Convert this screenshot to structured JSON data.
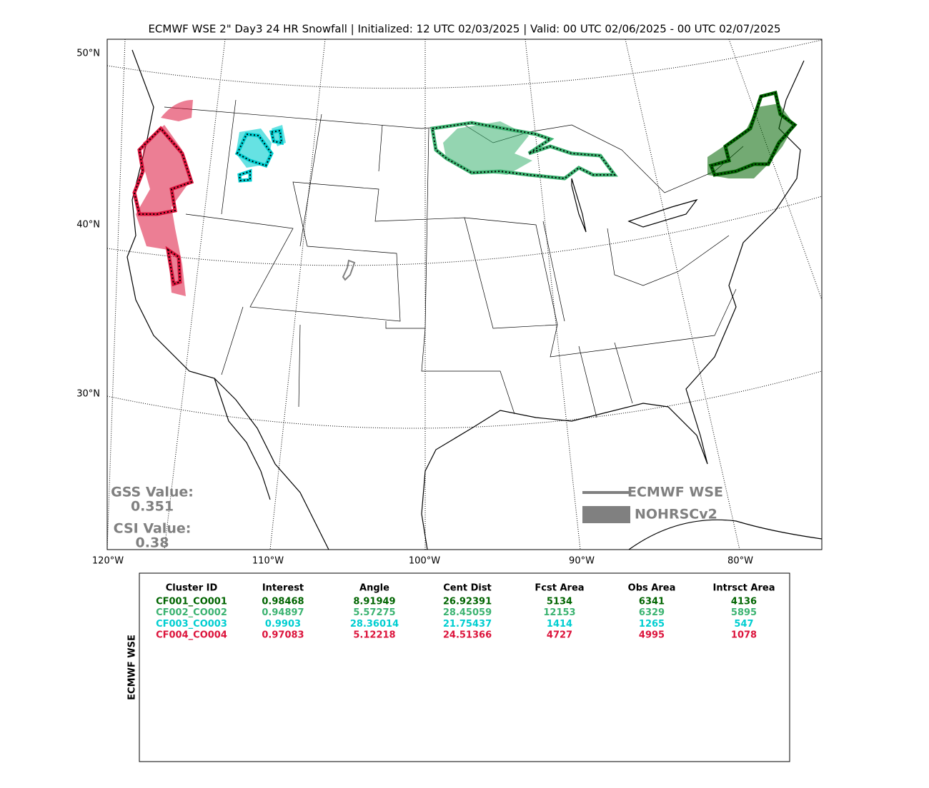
{
  "title": "ECMWF WSE 2\" Day3 24 HR Snowfall | Initialized: 12 UTC 02/03/2025 | Valid: 00 UTC 02/06/2025 - 00 UTC 02/07/2025",
  "map": {
    "lat_labels": [
      "50°N",
      "40°N",
      "30°N"
    ],
    "lon_labels": [
      "120°W",
      "110°W",
      "100°W",
      "90°W",
      "80°W"
    ],
    "stats": [
      {
        "label": "GSS Value:",
        "value": 0.351
      },
      {
        "label": "CSI Value:",
        "value": 0.38
      }
    ],
    "legend": [
      {
        "label": "ECMWF WSE",
        "color": "#808080"
      },
      {
        "label": "NOHRSCv2",
        "color": "#808080"
      }
    ]
  },
  "table": {
    "side_label": "ECMWF WSE",
    "columns": [
      "Cluster ID",
      "Interest",
      "Angle",
      "Cent Dist",
      "Fcst Area",
      "Obs Area",
      "Intrsct Area"
    ],
    "rows": [
      {
        "color": "#006400",
        "cells": [
          "CF001_CO001",
          0.98468,
          8.91949,
          26.92391,
          5134,
          6341,
          4136
        ]
      },
      {
        "color": "#3cb371",
        "cells": [
          "CF002_CO002",
          0.94897,
          5.57275,
          28.45059,
          12153,
          6329,
          5895
        ]
      },
      {
        "color": "#00ced1",
        "cells": [
          "CF003_CO003",
          0.9903,
          28.36014,
          21.75437,
          1414,
          1265,
          547
        ]
      },
      {
        "color": "#dc143c",
        "cells": [
          "CF004_CO004",
          0.97083,
          5.12218,
          24.51366,
          4727,
          4995,
          1078
        ]
      }
    ]
  }
}
